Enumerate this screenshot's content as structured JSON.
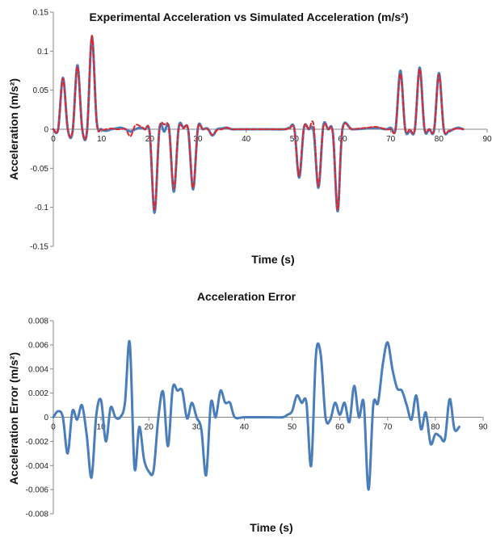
{
  "chart_data": [
    {
      "type": "line",
      "title": "Experimental Acceleration vs Simulated Acceleration (m/s²)",
      "xlabel": "Time (s)",
      "ylabel": "Acceleration (m/s²)",
      "xlim": [
        0,
        90
      ],
      "ylim": [
        -0.15,
        0.15
      ],
      "xticks": [
        "0",
        "10",
        "20",
        "30",
        "40",
        "50",
        "60",
        "70",
        "80",
        "90"
      ],
      "yticks": [
        "-0.15",
        "-0.1",
        "-0.05",
        "0",
        "0.05",
        "0.1",
        "0.15"
      ],
      "grid": false,
      "legend": "none",
      "series": [
        {
          "color": "#4a7ebb",
          "style": "solid",
          "x": [
            0,
            1,
            2,
            3,
            4,
            5,
            6,
            7,
            8,
            9,
            10,
            11,
            12,
            13,
            14,
            15,
            16,
            17,
            18,
            19,
            20,
            21,
            22,
            23,
            24,
            25,
            26,
            27,
            28,
            29,
            30,
            31,
            32,
            33,
            34,
            35,
            36,
            37,
            38,
            40,
            45,
            48,
            49,
            50,
            51,
            52,
            53,
            54,
            55,
            56,
            57,
            58,
            59,
            60,
            62,
            65,
            67,
            69,
            70,
            71,
            72,
            73,
            74,
            75,
            76,
            77,
            78,
            79,
            80,
            81,
            82,
            83,
            84,
            85
          ],
          "y": [
            0,
            0,
            0.066,
            0,
            -0.003,
            0.082,
            0,
            -0.002,
            0.118,
            0.01,
            0,
            -0.002,
            0,
            0.001,
            0.002,
            0,
            -0.003,
            0,
            0.002,
            0,
            -0.005,
            -0.107,
            0,
            -0.003,
            0.002,
            -0.08,
            0.002,
            0.002,
            -0.002,
            -0.077,
            0.002,
            0,
            0.001,
            -0.008,
            0,
            0.001,
            0.002,
            0,
            0,
            0,
            0,
            0,
            0.002,
            0.001,
            -0.062,
            0.002,
            0,
            -0.003,
            -0.075,
            0.004,
            0,
            -0.005,
            -0.105,
            0.001,
            0,
            0.001,
            0.002,
            0,
            0.002,
            0,
            0.075,
            0,
            -0.002,
            0,
            0.079,
            0,
            0,
            -0.001,
            0.072,
            0,
            -0.003,
            0,
            0.002,
            0
          ]
        },
        {
          "color": "#e3262a",
          "style": "dashed",
          "x": [
            0,
            1,
            2,
            3,
            4,
            5,
            6,
            7,
            8,
            9,
            10,
            11,
            12,
            13,
            14,
            15,
            16,
            17,
            18,
            19,
            20,
            21,
            22,
            23,
            24,
            25,
            26,
            27,
            28,
            29,
            30,
            31,
            32,
            33,
            34,
            35,
            36,
            37,
            38,
            40,
            45,
            48,
            49,
            50,
            51,
            52,
            53,
            54,
            55,
            56,
            57,
            58,
            59,
            60,
            62,
            65,
            67,
            69,
            70,
            71,
            72,
            73,
            74,
            75,
            76,
            77,
            78,
            79,
            80,
            81,
            82,
            83,
            84,
            85
          ],
          "y": [
            0,
            0,
            0.065,
            0,
            -0.002,
            0.08,
            0,
            -0.001,
            0.12,
            0.008,
            0,
            0,
            0.001,
            0,
            0,
            0,
            -0.009,
            0.005,
            0.004,
            0,
            -0.004,
            -0.103,
            -0.002,
            0.006,
            0,
            -0.076,
            0,
            0.001,
            0,
            -0.075,
            0.001,
            0,
            0,
            -0.007,
            -0.001,
            0,
            0.002,
            0,
            0,
            0,
            0,
            0,
            0.001,
            0,
            -0.06,
            0.003,
            0,
            0.006,
            -0.073,
            0.002,
            0,
            -0.006,
            -0.103,
            0,
            0,
            0.002,
            0.003,
            0,
            0,
            0,
            0.071,
            0.001,
            0,
            0,
            0.077,
            0.002,
            0,
            0,
            0.07,
            0,
            -0.002,
            0,
            0.001,
            0
          ]
        }
      ]
    },
    {
      "type": "line",
      "title": "Acceleration Error",
      "xlabel": "Time (s)",
      "ylabel": "Acceleration Error (m/s²)",
      "xlim": [
        0,
        90
      ],
      "ylim": [
        -0.008,
        0.008
      ],
      "xticks": [
        "0",
        "10",
        "20",
        "30",
        "40",
        "50",
        "60",
        "70",
        "80",
        "90"
      ],
      "yticks": [
        "-0.008",
        "-0.006",
        "-0.004",
        "-0.002",
        "0",
        "0.002",
        "0.004",
        "0.006",
        "0.008"
      ],
      "grid": false,
      "legend": "none",
      "series": [
        {
          "color": "#4a7ebb",
          "style": "solid",
          "x": [
            0,
            1,
            2,
            3,
            4,
            5,
            6,
            7,
            8,
            9,
            10,
            11,
            12,
            13,
            14,
            15,
            16,
            17,
            18,
            19,
            20,
            21,
            22,
            23,
            24,
            25,
            26,
            27,
            28,
            29,
            30,
            31,
            32,
            33,
            34,
            35,
            36,
            37,
            38,
            40,
            45,
            48,
            49,
            50,
            51,
            52,
            53,
            54,
            55,
            56,
            57,
            58,
            59,
            60,
            61,
            62,
            63,
            64,
            65,
            66,
            67,
            68,
            69,
            70,
            71,
            72,
            73,
            74,
            75,
            76,
            77,
            78,
            79,
            80,
            81,
            82,
            83,
            84,
            85
          ],
          "y": [
            0,
            0.0005,
            0,
            -0.003,
            0.0005,
            -0.0002,
            0.001,
            -0.0015,
            -0.005,
            0.0002,
            0.0014,
            -0.002,
            0.0008,
            0,
            0,
            0.0012,
            0.0062,
            -0.0042,
            -0.0008,
            -0.0035,
            -0.0045,
            -0.0044,
            0,
            0.0021,
            -0.0024,
            0.0024,
            0.0022,
            0.0022,
            -0.0001,
            0.0012,
            0,
            -0.001,
            -0.0048,
            0.0012,
            0,
            0.0022,
            0.0012,
            0.0012,
            0,
            0,
            0,
            0,
            0.0002,
            0.0005,
            0.0018,
            0.0012,
            0.0012,
            -0.004,
            0.0052,
            0.0052,
            0,
            -0.0002,
            0.0012,
            0.0002,
            0.0012,
            -0.0004,
            0.0026,
            0,
            0.0012,
            -0.006,
            0.001,
            0.0012,
            0.0044,
            0.0062,
            0.004,
            0.0024,
            0.0022,
            0.001,
            -0.0002,
            0.0018,
            -0.001,
            0.0004,
            -0.0022,
            -0.0014,
            -0.0016,
            -0.0018,
            0.0015,
            -0.001,
            -0.0008
          ]
        }
      ]
    }
  ]
}
